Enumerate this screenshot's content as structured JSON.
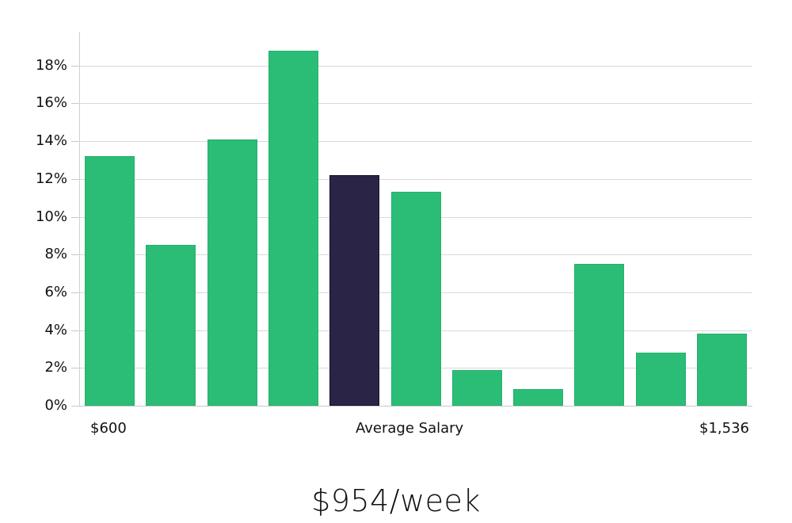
{
  "chart_data": {
    "type": "bar",
    "title": "",
    "xlabel": "Average Salary",
    "ylabel": "",
    "x_min_label": "$600",
    "x_max_label": "$1,536",
    "categories": [
      "bin1",
      "bin2",
      "bin3",
      "bin4",
      "bin5",
      "bin6",
      "bin7",
      "bin8",
      "bin9",
      "bin10",
      "bin11"
    ],
    "values": [
      13.2,
      8.5,
      14.1,
      18.8,
      12.2,
      11.3,
      1.9,
      0.9,
      7.5,
      2.8,
      3.8
    ],
    "highlight_index": 4,
    "ylim": [
      0,
      19.8
    ],
    "yticks": [
      0,
      2,
      4,
      6,
      8,
      10,
      12,
      14,
      16,
      18
    ],
    "ytick_labels": [
      "0%",
      "2%",
      "4%",
      "6%",
      "8%",
      "10%",
      "12%",
      "14%",
      "16%",
      "18%"
    ],
    "grid": true,
    "legend": null,
    "colors": {
      "bar": "#2bbd76",
      "highlight": "#2a2547",
      "grid": "#d9d9d9"
    }
  },
  "x_axis": {
    "left_label": "$600",
    "center_label": "Average Salary",
    "right_label": "$1,536"
  },
  "headline": "$954/week"
}
